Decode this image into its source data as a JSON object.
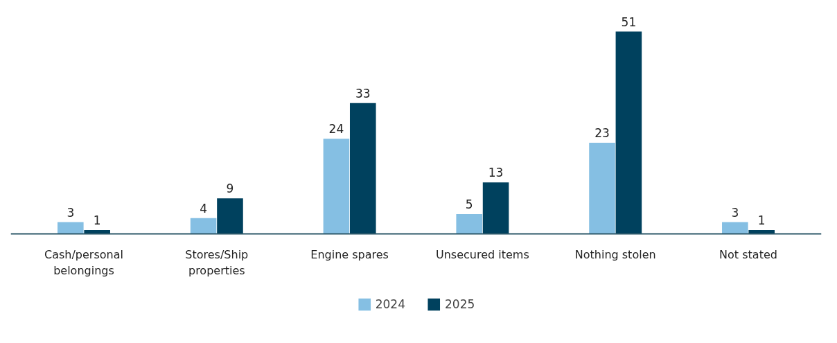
{
  "chart_data": {
    "type": "bar",
    "categories": [
      "Cash/personal belongings",
      "Stores/Ship properties",
      "Engine spares",
      "Unsecured items",
      "Nothing stolen",
      "Not stated"
    ],
    "series": [
      {
        "name": "2024",
        "color": "#85bfe3",
        "values": [
          3,
          4,
          24,
          5,
          23,
          3
        ]
      },
      {
        "name": "2025",
        "color": "#00415e",
        "values": [
          1,
          9,
          33,
          13,
          51,
          1
        ]
      }
    ],
    "data_labels": true,
    "legend": "bottom",
    "grid": false
  }
}
